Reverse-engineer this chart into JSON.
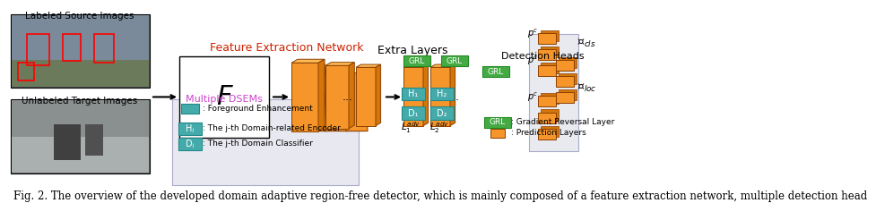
{
  "caption": "Fig. 2. The overview of the developed domain adaptive region-free detector, which is mainly composed of a feature extraction network, multiple detection head",
  "caption_fontsize": 8.5,
  "caption_color": "#000000",
  "fig_width": 6.4,
  "fig_height": 2.26,
  "background_color": "#ffffff",
  "image_placeholder": true
}
